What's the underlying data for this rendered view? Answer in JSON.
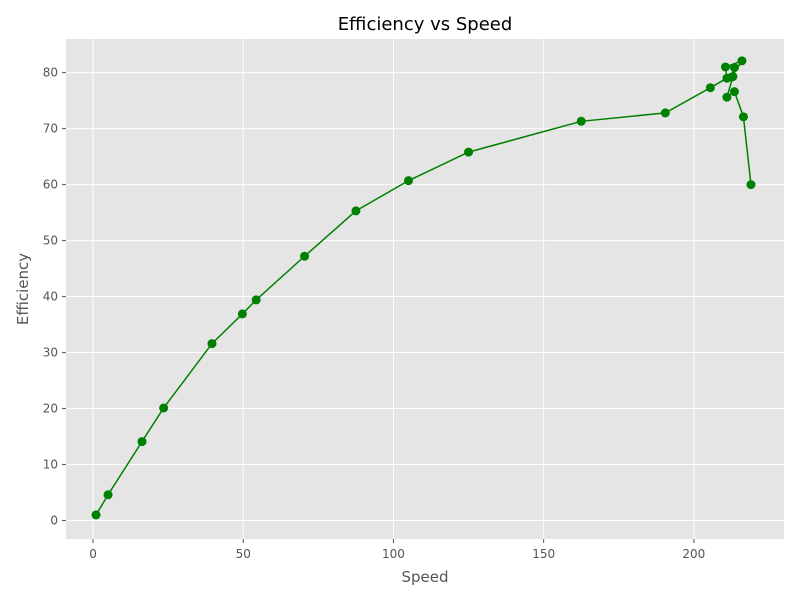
{
  "chart_data": {
    "type": "line",
    "title": "Efficiency vs Speed",
    "xlabel": "Speed",
    "ylabel": "Efficiency",
    "xlim": [
      -9,
      230
    ],
    "ylim": [
      -3.3,
      86
    ],
    "xticks": [
      0,
      50,
      100,
      150,
      200
    ],
    "yticks": [
      0,
      10,
      20,
      30,
      40,
      50,
      60,
      70,
      80
    ],
    "grid": true,
    "colors": {
      "background": "#e5e5e5",
      "grid": "#ffffff",
      "series": "#008000"
    },
    "series": [
      {
        "x": [
          1,
          5,
          16.3,
          23.5,
          39.6,
          49.7,
          54.3,
          70.4,
          87.5,
          105,
          125,
          162.5,
          190.5,
          205.5,
          211,
          210.5,
          216,
          212.5,
          213.5,
          213,
          211,
          213.5,
          216.5,
          219
        ],
        "y": [
          1,
          4.6,
          14.1,
          20.1,
          31.6,
          36.9,
          39.4,
          47.2,
          55.3,
          60.7,
          65.8,
          71.3,
          72.8,
          77.3,
          79.0,
          81.0,
          82.1,
          79.2,
          80.9,
          79.3,
          75.6,
          76.6,
          72.1,
          60.0
        ]
      }
    ]
  }
}
